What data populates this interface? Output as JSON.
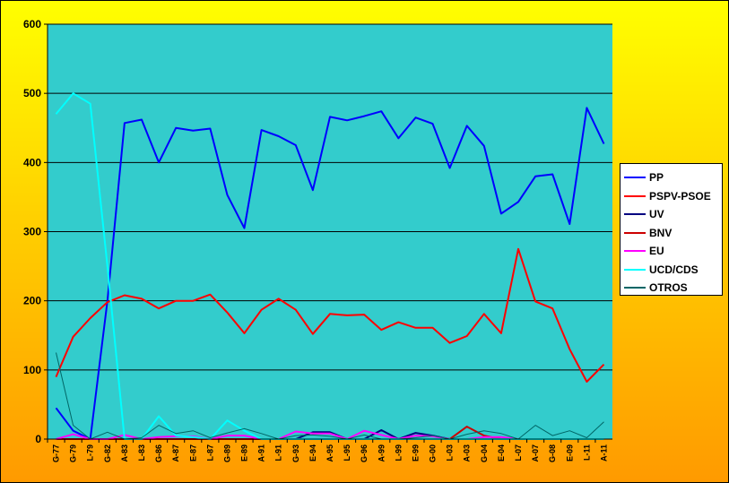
{
  "chart_data": {
    "type": "line",
    "title": "",
    "xlabel": "",
    "ylabel": "",
    "ylim": [
      0,
      600
    ],
    "yticks": [
      0,
      100,
      200,
      300,
      400,
      500,
      600
    ],
    "grid": "horizontal",
    "legend_position": "right",
    "categories": [
      "G-77",
      "G-79",
      "L-79",
      "G-82",
      "A-83",
      "L-83",
      "G-86",
      "A-87",
      "E-87",
      "L-87",
      "G-89",
      "E-89",
      "A-91",
      "L-91",
      "G-93",
      "E-94",
      "A-95",
      "L-95",
      "G-96",
      "A-99",
      "L-99",
      "E-99",
      "G-00",
      "L-03",
      "A-03",
      "G-04",
      "E-04",
      "L-07",
      "A-07",
      "G-08",
      "E-09",
      "L-11",
      "A-11"
    ],
    "series": [
      {
        "name": "PP",
        "color": "#0000ff",
        "width": 2,
        "values": [
          45,
          12,
          0,
          200,
          457,
          462,
          400,
          450,
          446,
          449,
          353,
          305,
          447,
          438,
          425,
          360,
          466,
          461,
          467,
          474,
          435,
          465,
          456,
          392,
          453,
          424,
          326,
          343,
          380,
          383,
          311,
          479,
          427
        ]
      },
      {
        "name": "PSPV-PSOE",
        "color": "#ff0000",
        "width": 2,
        "values": [
          90,
          148,
          175,
          198,
          208,
          203,
          189,
          200,
          200,
          209,
          183,
          153,
          187,
          203,
          187,
          152,
          181,
          179,
          180,
          158,
          169,
          161,
          161,
          139,
          149,
          181,
          153,
          275,
          199,
          189,
          130,
          83,
          108
        ]
      },
      {
        "name": "UV",
        "color": "#000080",
        "width": 2,
        "values": [
          0,
          0,
          0,
          0,
          0,
          0,
          0,
          0,
          0,
          0,
          0,
          0,
          0,
          0,
          0,
          10,
          10,
          0,
          0,
          13,
          0,
          9,
          5,
          0,
          0,
          0,
          0,
          0,
          0,
          0,
          0,
          0,
          0
        ]
      },
      {
        "name": "BNV",
        "color": "#cc0000",
        "width": 2,
        "values": [
          0,
          0,
          0,
          0,
          0,
          0,
          0,
          0,
          0,
          0,
          0,
          0,
          0,
          0,
          0,
          0,
          0,
          0,
          0,
          0,
          0,
          0,
          0,
          0,
          18,
          5,
          0,
          0,
          0,
          0,
          0,
          0,
          0
        ]
      },
      {
        "name": "EU",
        "color": "#ff00ff",
        "width": 2,
        "values": [
          0,
          7,
          0,
          0,
          6,
          0,
          3,
          4,
          4,
          0,
          5,
          5,
          0,
          0,
          11,
          8,
          8,
          0,
          12,
          6,
          0,
          5,
          4,
          0,
          0,
          3,
          3,
          0,
          0,
          0,
          0,
          0,
          0
        ]
      },
      {
        "name": "UCD/CDS",
        "color": "#00ffff",
        "width": 2,
        "values": [
          470,
          500,
          485,
          250,
          0,
          0,
          33,
          5,
          3,
          0,
          27,
          12,
          0,
          0,
          0,
          0,
          0,
          0,
          0,
          0,
          0,
          0,
          0,
          0,
          0,
          0,
          0,
          0,
          0,
          0,
          0,
          0,
          0
        ]
      },
      {
        "name": "OTROS",
        "color": "#006666",
        "width": 1,
        "values": [
          125,
          20,
          0,
          10,
          0,
          2,
          20,
          8,
          12,
          2,
          9,
          15,
          8,
          0,
          5,
          6,
          4,
          0,
          6,
          0,
          0,
          2,
          5,
          0,
          7,
          12,
          8,
          0,
          20,
          5,
          12,
          2,
          25
        ]
      }
    ]
  }
}
